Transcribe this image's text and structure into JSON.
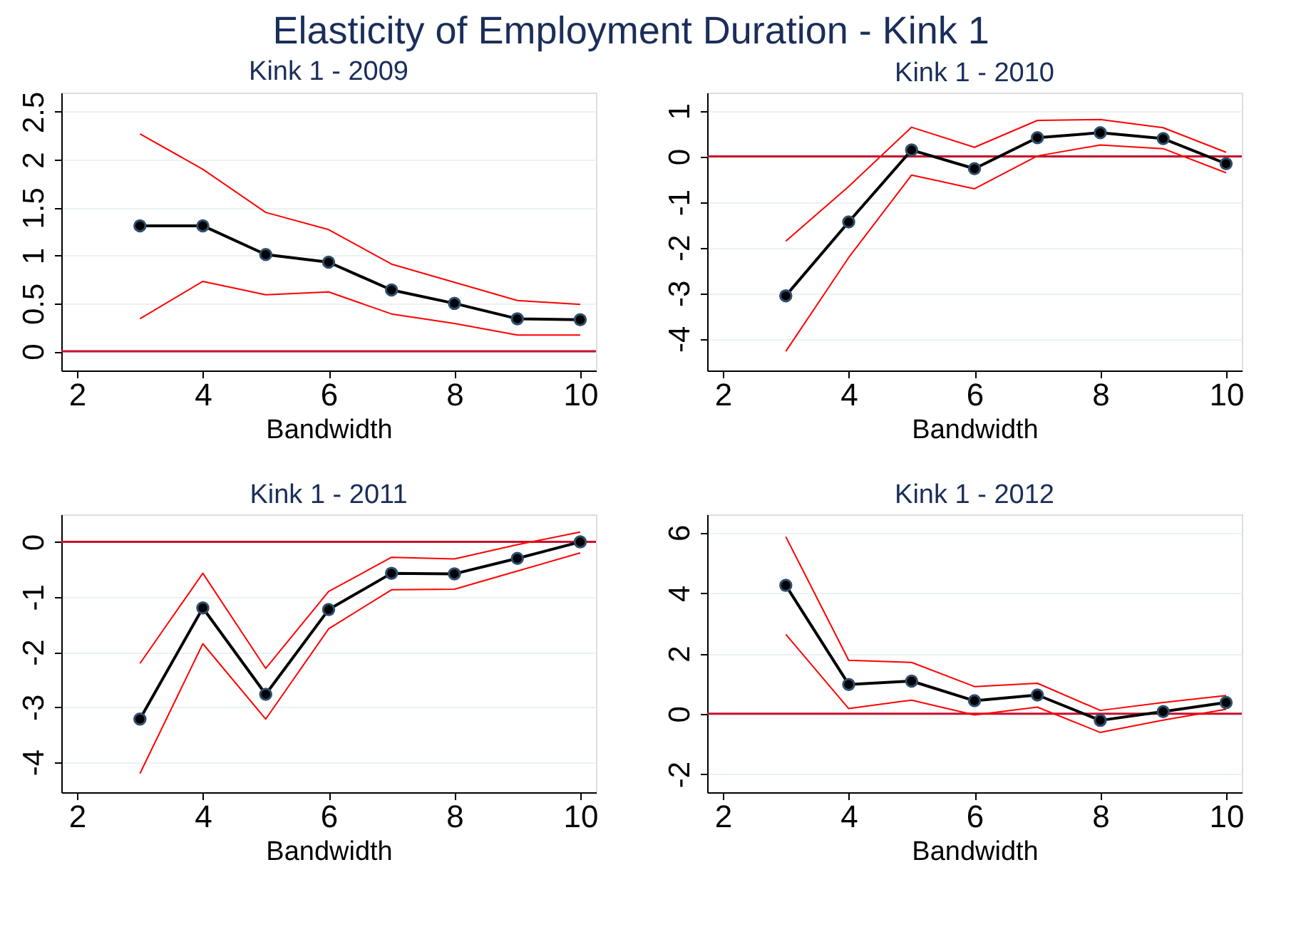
{
  "chart_data": [
    {
      "type": "other",
      "title": "Elasticity of Employment Duration - Kink 1"
    },
    {
      "type": "line",
      "title": "Kink 1 - 2009",
      "xlabel": "Bandwidth",
      "x": [
        3,
        4,
        5,
        6,
        7,
        8,
        9,
        10
      ],
      "xlim": [
        1.75,
        10.25
      ],
      "xticks": [
        2,
        4,
        6,
        8,
        10
      ],
      "ylim": [
        -0.2,
        2.7
      ],
      "yticks": [
        0,
        0.5,
        1,
        1.5,
        2,
        2.5
      ],
      "grid": "y",
      "ref_lines": [
        {
          "axis": "y",
          "value": 0,
          "color": "#c8102e"
        }
      ],
      "series": [
        {
          "color": "#ff0000",
          "marker": "none",
          "values": [
            2.27,
            1.9,
            1.45,
            1.27,
            0.91,
            0.72,
            0.53,
            0.49
          ]
        },
        {
          "color": "#ff0000",
          "marker": "none",
          "values": [
            0.34,
            0.73,
            0.59,
            0.62,
            0.39,
            0.29,
            0.17,
            0.17
          ]
        },
        {
          "color": "#000000",
          "marker": "circle",
          "values": [
            1.31,
            1.31,
            1.01,
            0.93,
            0.64,
            0.5,
            0.34,
            0.33
          ]
        }
      ]
    },
    {
      "type": "line",
      "title": "Kink 1 - 2010",
      "xlabel": "Bandwidth",
      "x": [
        3,
        4,
        5,
        6,
        7,
        8,
        9,
        10
      ],
      "xlim": [
        1.75,
        10.25
      ],
      "xticks": [
        2,
        4,
        6,
        8,
        10
      ],
      "ylim": [
        -4.7,
        1.4
      ],
      "yticks": [
        -4,
        -3,
        -2,
        -1,
        0,
        1
      ],
      "grid": "y",
      "ref_lines": [
        {
          "axis": "y",
          "value": 0,
          "color": "#c8102e"
        }
      ],
      "series": [
        {
          "color": "#ff0000",
          "marker": "none",
          "values": [
            -1.86,
            -0.66,
            0.64,
            0.2,
            0.79,
            0.81,
            0.63,
            0.09
          ]
        },
        {
          "color": "#ff0000",
          "marker": "none",
          "values": [
            -4.28,
            -2.22,
            -0.41,
            -0.71,
            0.01,
            0.25,
            0.17,
            -0.36
          ]
        },
        {
          "color": "#000000",
          "marker": "circle",
          "values": [
            -3.06,
            -1.44,
            0.14,
            -0.27,
            0.41,
            0.52,
            0.39,
            -0.16
          ]
        }
      ]
    },
    {
      "type": "line",
      "title": "Kink 1 - 2011",
      "xlabel": "Bandwidth",
      "x": [
        3,
        4,
        5,
        6,
        7,
        8,
        9,
        10
      ],
      "xlim": [
        1.75,
        10.25
      ],
      "xticks": [
        2,
        4,
        6,
        8,
        10
      ],
      "ylim": [
        -4.55,
        0.5
      ],
      "yticks": [
        -4,
        -3,
        -2,
        -1,
        0
      ],
      "grid": "y",
      "ref_lines": [
        {
          "axis": "y",
          "value": 0,
          "color": "#c8102e"
        }
      ],
      "series": [
        {
          "color": "#ff0000",
          "marker": "none",
          "values": [
            -2.21,
            -0.57,
            -2.3,
            -0.9,
            -0.28,
            -0.31,
            -0.05,
            0.18
          ]
        },
        {
          "color": "#ff0000",
          "marker": "none",
          "values": [
            -4.21,
            -1.85,
            -3.22,
            -1.58,
            -0.87,
            -0.86,
            -0.53,
            -0.2
          ]
        },
        {
          "color": "#000000",
          "marker": "circle",
          "values": [
            -3.22,
            -1.2,
            -2.77,
            -1.23,
            -0.57,
            -0.58,
            -0.3,
            0.0
          ]
        }
      ]
    },
    {
      "type": "line",
      "title": "Kink 1 - 2012",
      "xlabel": "Bandwidth",
      "x": [
        3,
        4,
        5,
        6,
        7,
        8,
        9,
        10
      ],
      "xlim": [
        1.75,
        10.25
      ],
      "xticks": [
        2,
        4,
        6,
        8,
        10
      ],
      "ylim": [
        -2.6,
        6.6
      ],
      "yticks": [
        -2,
        0,
        2,
        4,
        6
      ],
      "grid": "y",
      "ref_lines": [
        {
          "axis": "y",
          "value": 0,
          "color": "#c8102e"
        }
      ],
      "series": [
        {
          "color": "#ff0000",
          "marker": "none",
          "values": [
            5.86,
            1.77,
            1.7,
            0.9,
            1.01,
            0.11,
            0.37,
            0.6
          ]
        },
        {
          "color": "#ff0000",
          "marker": "none",
          "values": [
            2.63,
            0.17,
            0.45,
            -0.04,
            0.22,
            -0.62,
            -0.21,
            0.15
          ]
        },
        {
          "color": "#000000",
          "marker": "circle",
          "values": [
            4.25,
            0.97,
            1.08,
            0.43,
            0.62,
            -0.22,
            0.07,
            0.37
          ]
        }
      ]
    }
  ]
}
